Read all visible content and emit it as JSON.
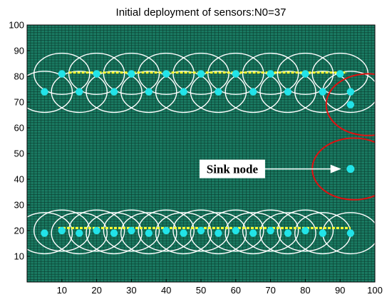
{
  "chart_data": {
    "type": "scatter",
    "title": "Initial deployment of sensors:N0=37",
    "xlabel": "",
    "ylabel": "",
    "xlim": [
      0,
      100
    ],
    "ylim": [
      0,
      100
    ],
    "xticks": [
      10,
      20,
      30,
      40,
      50,
      60,
      70,
      80,
      90,
      100
    ],
    "yticks": [
      10,
      20,
      30,
      40,
      50,
      60,
      70,
      80,
      90,
      100
    ],
    "grid": true,
    "colors": {
      "background": "#1a7a62",
      "grid": "#0b3d2f",
      "sensor": "#22e3e8",
      "sensing_circle": "#ffffff",
      "sink_circle": "#e01010",
      "target_line": "#ffff33"
    },
    "sensing_radius": 8,
    "sink_radius": 12,
    "sensors": [
      {
        "x": 5,
        "y": 74
      },
      {
        "x": 10,
        "y": 81
      },
      {
        "x": 15,
        "y": 74
      },
      {
        "x": 20,
        "y": 81
      },
      {
        "x": 25,
        "y": 74
      },
      {
        "x": 30,
        "y": 81
      },
      {
        "x": 35,
        "y": 74
      },
      {
        "x": 40,
        "y": 81
      },
      {
        "x": 45,
        "y": 74
      },
      {
        "x": 50,
        "y": 81
      },
      {
        "x": 55,
        "y": 74
      },
      {
        "x": 60,
        "y": 81
      },
      {
        "x": 65,
        "y": 74
      },
      {
        "x": 70,
        "y": 81
      },
      {
        "x": 75,
        "y": 74
      },
      {
        "x": 80,
        "y": 81
      },
      {
        "x": 85,
        "y": 74
      },
      {
        "x": 90,
        "y": 81
      },
      {
        "x": 93,
        "y": 74
      },
      {
        "x": 5,
        "y": 19
      },
      {
        "x": 10,
        "y": 20
      },
      {
        "x": 15,
        "y": 19
      },
      {
        "x": 20,
        "y": 20
      },
      {
        "x": 25,
        "y": 19
      },
      {
        "x": 30,
        "y": 20
      },
      {
        "x": 35,
        "y": 19
      },
      {
        "x": 40,
        "y": 20
      },
      {
        "x": 45,
        "y": 19
      },
      {
        "x": 50,
        "y": 20
      },
      {
        "x": 55,
        "y": 19
      },
      {
        "x": 60,
        "y": 20
      },
      {
        "x": 65,
        "y": 19
      },
      {
        "x": 70,
        "y": 20
      },
      {
        "x": 75,
        "y": 19
      },
      {
        "x": 80,
        "y": 20
      },
      {
        "x": 85,
        "y": 19
      },
      {
        "x": 93,
        "y": 19
      }
    ],
    "sensors_no_circle": [
      {
        "x": 93,
        "y": 69
      }
    ],
    "sinks": [
      {
        "x": 98,
        "y": 69
      },
      {
        "x": 94,
        "y": 44
      }
    ],
    "sink_node": {
      "x": 93,
      "y": 44
    },
    "target_lines": [
      {
        "x1": 12,
        "x2": 92,
        "y": 81.5
      },
      {
        "x1": 9,
        "x2": 93,
        "y": 21
      }
    ],
    "annotation": {
      "text": "Sink node",
      "text_x": 59,
      "text_y": 44,
      "arrow_from_x": 67,
      "arrow_to_x": 90,
      "arrow_y": 44
    }
  }
}
